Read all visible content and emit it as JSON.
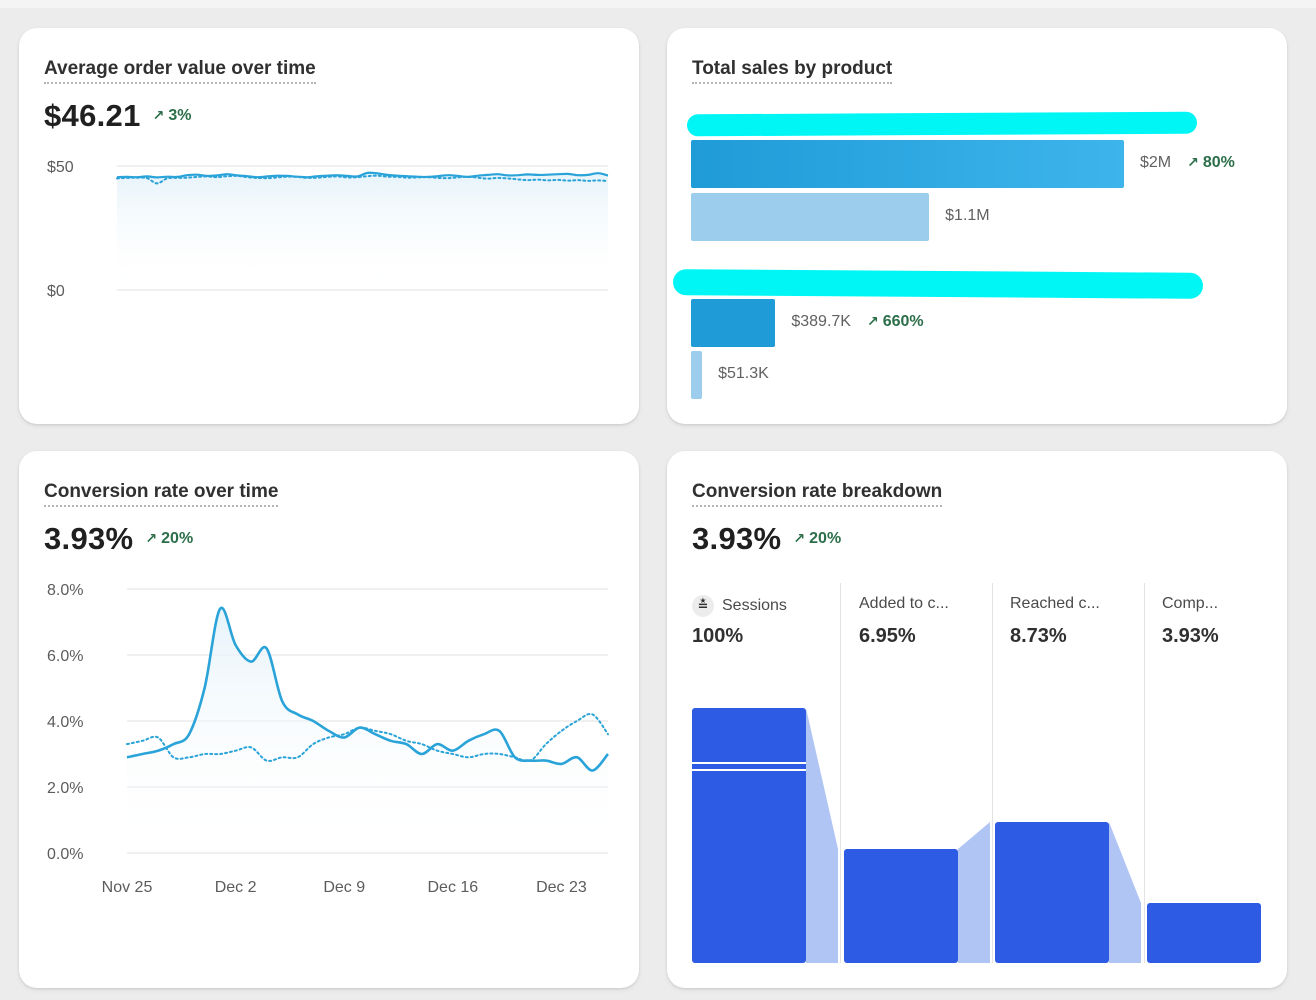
{
  "cards": {
    "aov": {
      "title": "Average order value over time",
      "value": "$46.21",
      "change": "3%"
    },
    "sales": {
      "title": "Total sales by product"
    },
    "conversion": {
      "title": "Conversion rate over time",
      "value": "3.93%",
      "change": "20%"
    },
    "breakdown": {
      "title": "Conversion rate breakdown",
      "value": "3.93%",
      "change": "20%"
    }
  },
  "colors": {
    "line_primary": "#2aa3d8",
    "bar_dark": "#1f9bd7",
    "bar_light": "#9ccdec",
    "funnel_bar": "#2d5be3",
    "funnel_connector": "#a9bff4",
    "change_green": "#2c6e49",
    "redaction": "#00f5f5"
  },
  "chart_data": [
    {
      "type": "line",
      "name": "aov",
      "title": "Average order value over time",
      "ylim": [
        0,
        50
      ],
      "yticks": [
        "$50",
        "$0"
      ],
      "series": [
        {
          "name": "current",
          "style": "solid",
          "values": [
            45.5,
            45.6,
            45.5,
            45.8,
            45.4,
            45.7,
            45.6,
            46.3,
            46.5,
            46.0,
            46.2,
            46.7,
            46.2,
            45.9,
            45.5,
            45.8,
            46.1,
            46.0,
            45.7,
            45.5,
            45.9,
            46.1,
            46.3,
            46.0,
            45.8,
            47.2,
            47.0,
            46.4,
            46.1,
            45.9,
            45.7,
            45.6,
            45.9,
            46.3,
            46.0,
            45.6,
            46.1,
            46.4,
            46.7,
            46.2,
            46.3,
            46.6,
            46.4,
            46.5,
            46.7,
            46.8,
            46.3,
            46.4,
            47.1,
            46.2
          ]
        },
        {
          "name": "previous",
          "style": "dotted",
          "values": [
            45.0,
            45.2,
            45.3,
            45.1,
            43.0,
            45.0,
            45.2,
            45.3,
            45.6,
            45.8,
            45.5,
            45.9,
            46.0,
            45.5,
            45.2,
            45.1,
            45.4,
            45.7,
            45.6,
            45.2,
            45.3,
            45.6,
            45.8,
            45.4,
            45.5,
            45.9,
            46.1,
            45.7,
            45.6,
            45.3,
            45.4,
            45.5,
            45.2,
            45.1,
            45.4,
            45.7,
            45.3,
            44.9,
            45.2,
            45.0,
            44.6,
            44.3,
            44.5,
            44.2,
            44.4,
            44.1,
            44.3,
            44.0,
            44.2,
            43.9
          ]
        }
      ]
    },
    {
      "type": "bar",
      "name": "sales-by-product",
      "title": "Total sales by product",
      "orientation": "horizontal",
      "groups": [
        {
          "current": 2000000,
          "current_label": "$2M",
          "change": "80%",
          "previous": 1100000,
          "previous_label": "$1.1M"
        },
        {
          "current": 389700,
          "current_label": "$389.7K",
          "change": "660%",
          "previous": 51300,
          "previous_label": "$51.3K"
        }
      ]
    },
    {
      "type": "line",
      "name": "conversion",
      "title": "Conversion rate over time",
      "ylim": [
        0,
        8
      ],
      "yticks": [
        "8.0%",
        "6.0%",
        "4.0%",
        "2.0%",
        "0.0%"
      ],
      "xticks": [
        "Nov 25",
        "Dec 2",
        "Dec 9",
        "Dec 16",
        "Dec 23"
      ],
      "x_start": 0,
      "x_end": 30,
      "xtick_positions": [
        0,
        7,
        14,
        21,
        28
      ],
      "series": [
        {
          "name": "current",
          "style": "solid",
          "values": [
            2.9,
            3.0,
            3.1,
            3.3,
            3.6,
            5.0,
            7.4,
            6.3,
            5.8,
            6.2,
            4.6,
            4.2,
            4.0,
            3.7,
            3.5,
            3.8,
            3.6,
            3.4,
            3.3,
            3.0,
            3.3,
            3.1,
            3.4,
            3.6,
            3.7,
            2.9,
            2.8,
            2.8,
            2.7,
            2.9,
            2.5,
            3.0
          ]
        },
        {
          "name": "previous",
          "style": "dotted",
          "values": [
            3.3,
            3.4,
            3.5,
            2.9,
            2.9,
            3.0,
            3.0,
            3.1,
            3.2,
            2.8,
            2.9,
            2.9,
            3.3,
            3.5,
            3.6,
            3.8,
            3.7,
            3.6,
            3.4,
            3.3,
            3.1,
            3.0,
            2.9,
            3.0,
            3.0,
            2.9,
            2.8,
            3.3,
            3.7,
            4.0,
            4.2,
            3.6
          ]
        }
      ]
    },
    {
      "type": "bar",
      "name": "conversion-funnel",
      "title": "Conversion rate breakdown",
      "steps": [
        {
          "label": "Sessions",
          "value": "100%",
          "bar_height": 0.85
        },
        {
          "label": "Added to c...",
          "value": "6.95%",
          "bar_height": 0.38
        },
        {
          "label": "Reached c...",
          "value": "8.73%",
          "bar_height": 0.47
        },
        {
          "label": "Comp...",
          "value": "3.93%",
          "bar_height": 0.2
        }
      ]
    }
  ]
}
